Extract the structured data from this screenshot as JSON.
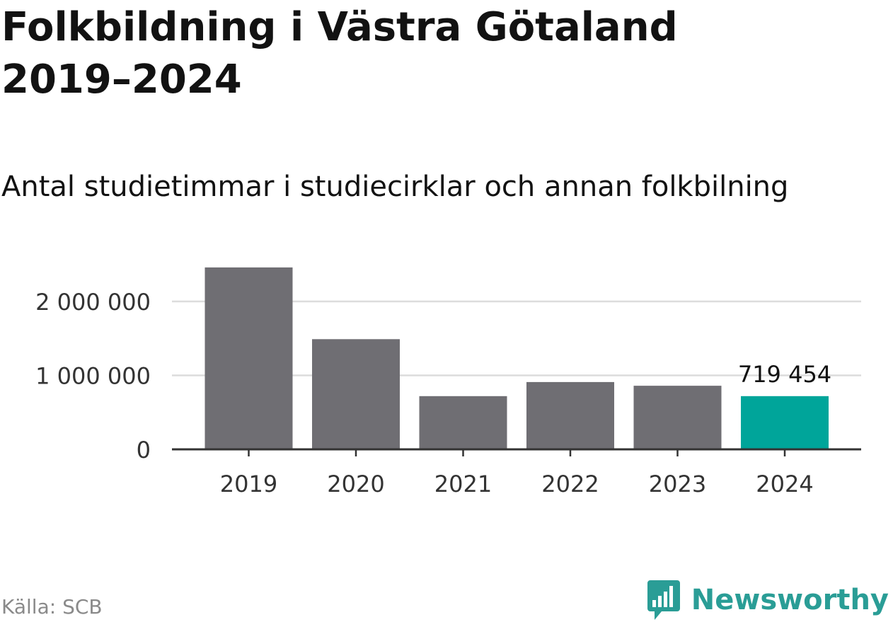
{
  "header": {
    "title": "Folkbildning i Västra Götaland 2019–2024",
    "subtitle": "Antal studietimmar i studiecirklar och annan folkbilning"
  },
  "footer": {
    "source": "Källa: SCB",
    "brand": "Newsworthy",
    "brand_icon": "bar-chart-speech-bubble-icon"
  },
  "colors": {
    "bar_default": "#6f6e73",
    "bar_highlight": "#00a59a",
    "grid": "#dcdcdc",
    "axis": "#333333",
    "brand": "#2a9d96"
  },
  "chart_data": {
    "type": "bar",
    "categories": [
      "2019",
      "2020",
      "2021",
      "2022",
      "2023",
      "2024"
    ],
    "values": [
      2460000,
      1490000,
      719454,
      910000,
      860000,
      719454
    ],
    "highlight_index": 5,
    "data_labels": [
      {
        "index": 5,
        "text": "719 454"
      }
    ],
    "yticks": [
      {
        "value": 0,
        "label": "0"
      },
      {
        "value": 1000000,
        "label": "1 000 000"
      },
      {
        "value": 2000000,
        "label": "2 000 000"
      }
    ],
    "ylim": [
      0,
      2600000
    ],
    "grid": true,
    "legend": false
  }
}
